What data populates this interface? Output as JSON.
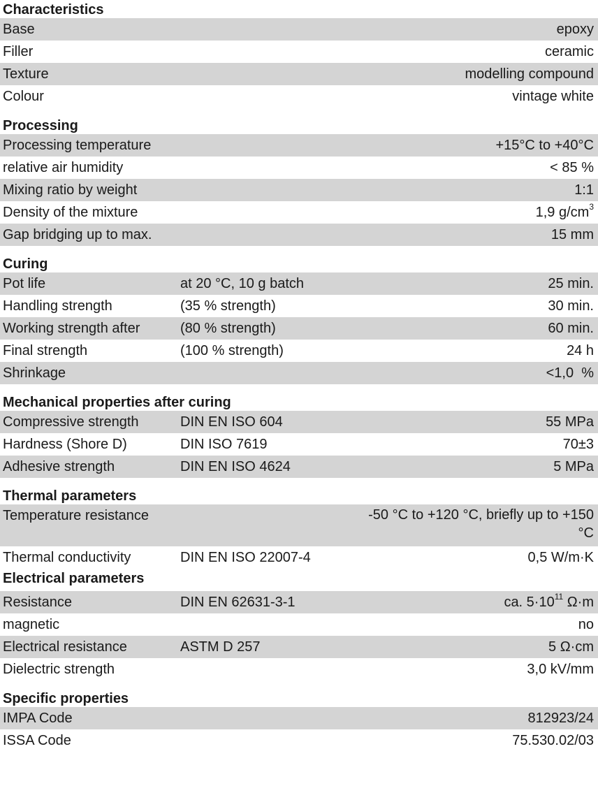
{
  "sections": {
    "characteristics": {
      "title": "Characteristics",
      "rows": [
        {
          "label": "Base",
          "value": "epoxy"
        },
        {
          "label": "Filler",
          "value": "ceramic"
        },
        {
          "label": "Texture",
          "value": "modelling compound"
        },
        {
          "label": "Colour",
          "value": "vintage white"
        }
      ]
    },
    "processing": {
      "title": "Processing",
      "rows": [
        {
          "label": "Processing temperature",
          "value": "+15°C to +40°C"
        },
        {
          "label": "relative air humidity",
          "value": "< 85 %"
        },
        {
          "label": "Mixing ratio by weight",
          "value": "1:1"
        },
        {
          "label": "Density of the mixture",
          "value": "1,9 g/cm",
          "value_sup": "3"
        },
        {
          "label": "Gap bridging up to max.",
          "value": "15 mm"
        }
      ]
    },
    "curing": {
      "title": "Curing",
      "rows": [
        {
          "label": "Pot life",
          "condition": "at 20 °C, 10 g batch",
          "value": "25 min."
        },
        {
          "label": "Handling strength",
          "condition": "(35 % strength)",
          "value": "30 min."
        },
        {
          "label": "Working strength after",
          "condition": "(80 % strength)",
          "value": "60 min."
        },
        {
          "label": "Final strength",
          "condition": "(100 % strength)",
          "value": "24 h"
        },
        {
          "label": "Shrinkage",
          "value": "<1,0  %"
        }
      ]
    },
    "mechanical": {
      "title": "Mechanical properties after curing",
      "rows": [
        {
          "label": "Compressive strength",
          "condition": "DIN EN ISO 604",
          "value": "55 MPa"
        },
        {
          "label": "Hardness (Shore D)",
          "condition": "DIN ISO 7619",
          "value": "70±3"
        },
        {
          "label": "Adhesive strength",
          "condition": "DIN EN ISO 4624",
          "value": "5 MPa"
        }
      ]
    },
    "thermal": {
      "title": "Thermal parameters",
      "rows": [
        {
          "label": "Temperature resistance",
          "value": "-50 °C to +120 °C, briefly up to +150 °C"
        },
        {
          "label": "Thermal conductivity",
          "condition": "DIN EN ISO 22007-4",
          "value": "0,5 W/m·K"
        }
      ]
    },
    "electrical": {
      "title": "Electrical parameters",
      "rows": [
        {
          "label": "Resistance",
          "condition": "DIN EN 62631-3-1",
          "value": "ca. 5·10",
          "value_sup": "11",
          "value_suffix": " Ω·m"
        },
        {
          "label": "magnetic",
          "value": "no"
        },
        {
          "label": "Electrical resistance",
          "condition": "ASTM D 257",
          "value": "5 Ω·cm"
        },
        {
          "label": "Dielectric strength",
          "value": "3,0 kV/mm"
        }
      ]
    },
    "specific": {
      "title": "Specific properties",
      "rows": [
        {
          "label": "IMPA Code",
          "value": "812923/24"
        },
        {
          "label": "ISSA Code",
          "value": "75.530.02/03"
        }
      ]
    }
  },
  "colors": {
    "row_shade": "#d4d4d4",
    "text": "#1a1a1a"
  }
}
